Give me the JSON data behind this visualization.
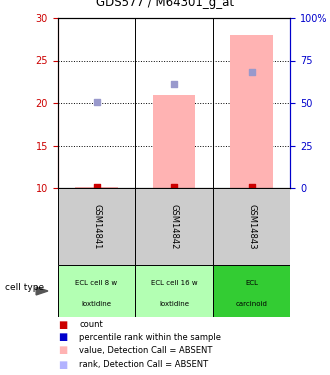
{
  "title": "GDS577 / M64301_g_at",
  "samples": [
    "GSM14841",
    "GSM14842",
    "GSM14843"
  ],
  "cell_types_line1": [
    "ECL cell 8 w",
    "ECL cell 16 w",
    "ECL"
  ],
  "cell_types_line2": [
    "loxtidine",
    "loxtidine",
    "carcinoid"
  ],
  "cell_type_colors": [
    "#b3ffb3",
    "#b3ffb3",
    "#33cc33"
  ],
  "ylim_left": [
    10,
    30
  ],
  "yticks_left": [
    10,
    15,
    20,
    25,
    30
  ],
  "ytick_labels_right": [
    "0",
    "25",
    "50",
    "75",
    "100%"
  ],
  "left_axis_color": "#cc0000",
  "right_axis_color": "#0000cc",
  "bar_values": [
    10.1,
    21.0,
    28.0
  ],
  "bar_color": "#ffb3b3",
  "rank_dot_values": [
    20.1,
    22.2,
    23.7
  ],
  "rank_dot_color": "#9999cc",
  "count_dot_values": [
    10.1,
    10.1,
    10.1
  ],
  "count_dot_color": "#cc0000",
  "sample_col_color": "#cccccc",
  "grid_yticks": [
    15,
    20,
    25
  ],
  "legend_items": [
    {
      "color": "#cc0000",
      "label": "count"
    },
    {
      "color": "#0000cc",
      "label": "percentile rank within the sample"
    },
    {
      "color": "#ffb3b3",
      "label": "value, Detection Call = ABSENT"
    },
    {
      "color": "#b3b3ff",
      "label": "rank, Detection Call = ABSENT"
    }
  ]
}
